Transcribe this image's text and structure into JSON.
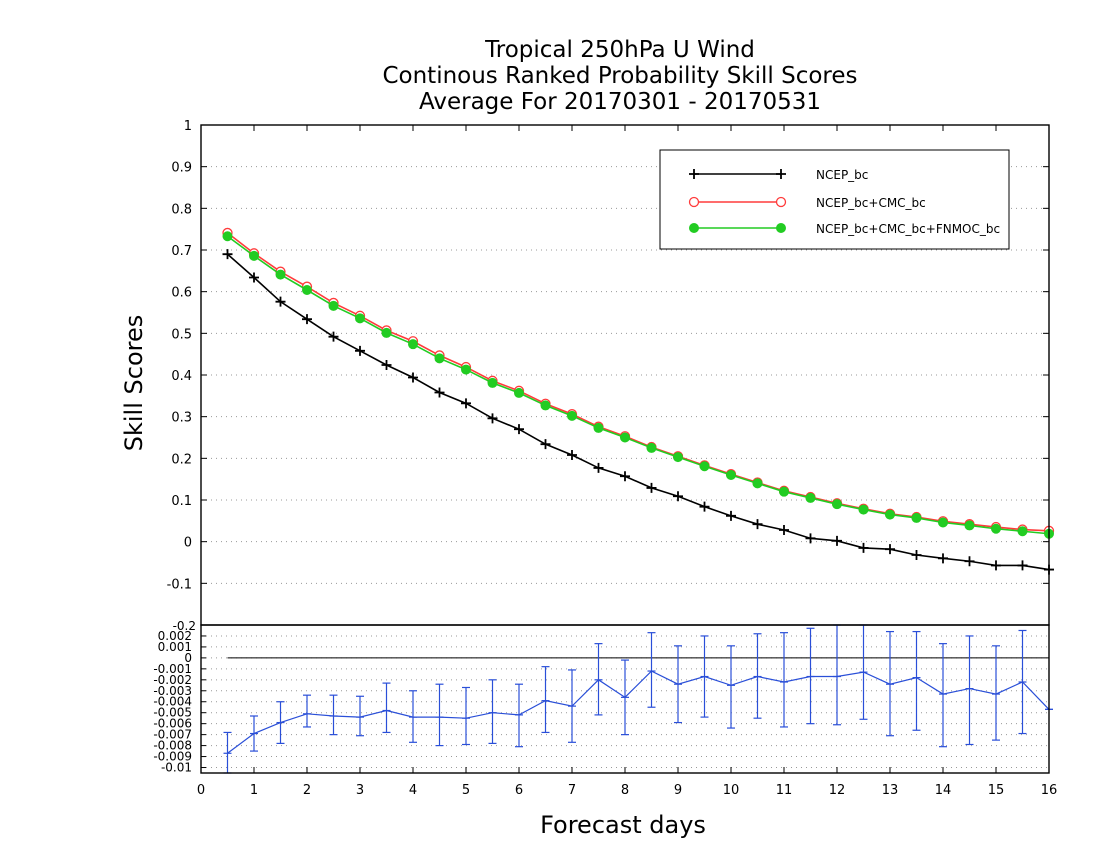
{
  "chart_data": [
    {
      "type": "line",
      "title": [
        "Tropical 250hPa U Wind",
        "Continous Ranked Probability Skill Scores",
        "Average For 20170301 - 20170531"
      ],
      "ylabel": "Skill Scores",
      "ylim": [
        -0.2,
        1
      ],
      "yticks": [
        "-0.1",
        "0",
        "0.1",
        "0.2",
        "0.3",
        "0.4",
        "0.5",
        "0.6",
        "0.7",
        "0.8",
        "0.9",
        "1"
      ],
      "grid": "horizontal-dotted",
      "legend_position": "top-right",
      "x": [
        0.5,
        1,
        1.5,
        2,
        2.5,
        3,
        3.5,
        4,
        4.5,
        5,
        5.5,
        6,
        6.5,
        7,
        7.5,
        8,
        8.5,
        9,
        9.5,
        10,
        10.5,
        11,
        11.5,
        12,
        12.5,
        13,
        13.5,
        14,
        14.5,
        15,
        15.5,
        16
      ],
      "series": [
        {
          "name": "NCEP_bc",
          "color": "#000000",
          "marker": "plus",
          "values": [
            0.69,
            0.634,
            0.576,
            0.534,
            0.492,
            0.458,
            0.424,
            0.394,
            0.358,
            0.332,
            0.296,
            0.27,
            0.234,
            0.208,
            0.177,
            0.157,
            0.129,
            0.109,
            0.084,
            0.062,
            0.042,
            0.028,
            0.008,
            0.002,
            -0.015,
            -0.018,
            -0.032,
            -0.04,
            -0.047,
            -0.057,
            -0.057,
            -0.067
          ]
        },
        {
          "name": "NCEP_bc+CMC_bc",
          "color": "#ff3b3b",
          "marker": "open-circle",
          "values": [
            0.741,
            0.692,
            0.648,
            0.612,
            0.573,
            0.542,
            0.507,
            0.481,
            0.447,
            0.419,
            0.386,
            0.362,
            0.331,
            0.306,
            0.276,
            0.253,
            0.227,
            0.205,
            0.183,
            0.162,
            0.142,
            0.122,
            0.107,
            0.092,
            0.079,
            0.067,
            0.059,
            0.049,
            0.042,
            0.035,
            0.029,
            0.026
          ]
        },
        {
          "name": "NCEP_bc+CMC_bc+FNMOC_bc",
          "color": "#22cc22",
          "marker": "filled-circle",
          "values": [
            0.733,
            0.686,
            0.641,
            0.604,
            0.566,
            0.536,
            0.501,
            0.474,
            0.44,
            0.413,
            0.381,
            0.357,
            0.327,
            0.302,
            0.273,
            0.25,
            0.225,
            0.203,
            0.181,
            0.16,
            0.14,
            0.12,
            0.105,
            0.09,
            0.077,
            0.065,
            0.057,
            0.046,
            0.039,
            0.031,
            0.025,
            0.019
          ]
        }
      ]
    },
    {
      "type": "line",
      "description_free": true,
      "xlabel": "Forecast days",
      "xlim": [
        0,
        16
      ],
      "xticks": [
        "0",
        "1",
        "2",
        "3",
        "4",
        "5",
        "6",
        "7",
        "8",
        "9",
        "10",
        "11",
        "12",
        "13",
        "14",
        "15",
        "16"
      ],
      "ylim": [
        -0.0105,
        0.003
      ],
      "yticks": [
        "-0.01",
        "-0.009",
        "-0.008",
        "-0.007",
        "-0.006",
        "-0.005",
        "-0.004",
        "-0.003",
        "-0.002",
        "-0.001",
        "0",
        "0.001",
        "0.002"
      ],
      "top_label": "-0.2",
      "grid": "horizontal-dotted",
      "reference_line": 0,
      "x": [
        0.5,
        1,
        1.5,
        2,
        2.5,
        3,
        3.5,
        4,
        4.5,
        5,
        5.5,
        6,
        6.5,
        7,
        7.5,
        8,
        8.5,
        9,
        9.5,
        10,
        10.5,
        11,
        11.5,
        12,
        12.5,
        13,
        13.5,
        14,
        14.5,
        15,
        15.5,
        16
      ],
      "series": [
        {
          "color": "#2a4fd8",
          "marker": "tick",
          "values": [
            -0.0087,
            -0.0069,
            -0.0059,
            -0.0051,
            -0.0053,
            -0.0054,
            -0.0048,
            -0.0054,
            -0.0054,
            -0.0055,
            -0.005,
            -0.0052,
            -0.0039,
            -0.0044,
            -0.002,
            -0.0036,
            -0.0012,
            -0.0024,
            -0.0017,
            -0.0025,
            -0.0017,
            -0.0022,
            -0.0017,
            -0.0017,
            -0.0013,
            -0.0024,
            -0.0018,
            -0.0033,
            -0.0028,
            -0.0033,
            -0.0022,
            -0.0047
          ],
          "error_low": [
            -0.0106,
            -0.0085,
            -0.0078,
            -0.0063,
            -0.007,
            -0.0071,
            -0.0068,
            -0.0077,
            -0.008,
            -0.0079,
            -0.0078,
            -0.0081,
            -0.0068,
            -0.0077,
            -0.0052,
            -0.007,
            -0.0045,
            -0.0059,
            -0.0054,
            -0.0064,
            -0.0055,
            -0.0063,
            -0.006,
            -0.0061,
            -0.0056,
            -0.0071,
            -0.0066,
            -0.0081,
            -0.0079,
            -0.0075,
            -0.0069,
            -0.0047
          ],
          "error_high": [
            -0.0068,
            -0.0053,
            -0.004,
            -0.0034,
            -0.0034,
            -0.0035,
            -0.0023,
            -0.003,
            -0.0024,
            -0.0027,
            -0.002,
            -0.0024,
            -0.0008,
            -0.0011,
            0.0013,
            -0.0002,
            0.0023,
            0.0011,
            0.002,
            0.0011,
            0.0022,
            0.0023,
            0.0027,
            0.0033,
            0.003,
            0.0024,
            0.0024,
            0.0013,
            0.002,
            0.0011,
            0.0025,
            -0.0047
          ]
        }
      ]
    }
  ]
}
